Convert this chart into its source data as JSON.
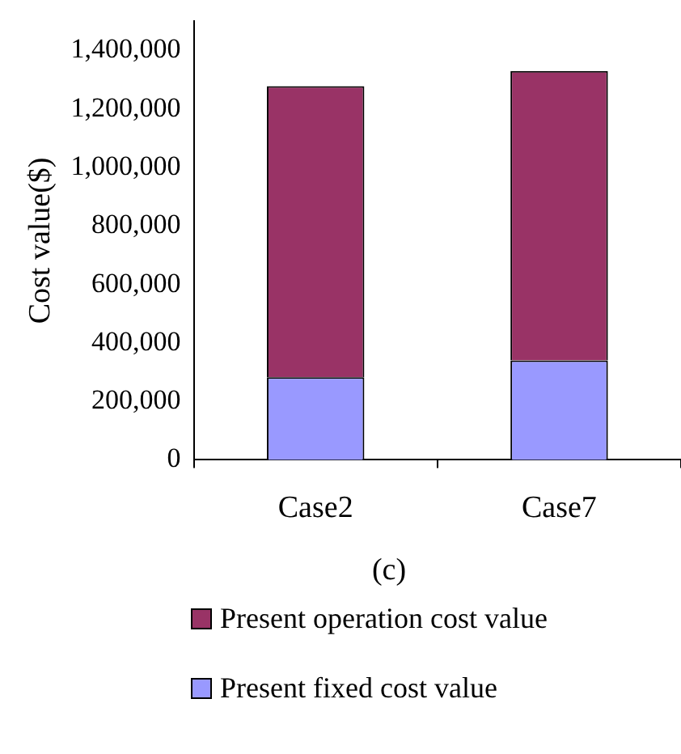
{
  "chart_data": {
    "type": "bar",
    "stacked": true,
    "ylabel": "Cost value($)",
    "categories": [
      "Case2",
      "Case7"
    ],
    "series": [
      {
        "name": "Present fixed cost value",
        "color": "#9999ff",
        "values": [
          283000,
          340000
        ]
      },
      {
        "name": "Present operation cost value",
        "color": "#993366",
        "values": [
          995000,
          990000
        ]
      }
    ],
    "ylim": [
      0,
      1500000
    ],
    "yticks": [
      0,
      {
        "value": 200000,
        "label": "200,000"
      },
      {
        "value": 400000,
        "label": "400,000"
      },
      {
        "value": 600000,
        "label": "600,000"
      },
      {
        "value": 800000,
        "label": "800,000"
      },
      {
        "value": 1000000,
        "label": "1,000,000"
      },
      {
        "value": 1200000,
        "label": "1,200,000"
      },
      {
        "value": 1400000,
        "label": "1,400,000"
      }
    ],
    "grid": false,
    "legend": "bottom",
    "annotations": [
      "(c)"
    ]
  }
}
